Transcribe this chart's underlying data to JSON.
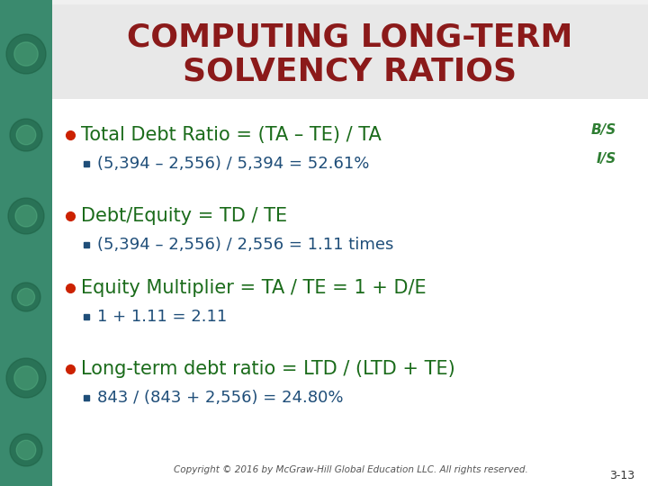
{
  "title_line1": "COMPUTING LONG-TERM",
  "title_line2": "SOLVENCY RATIOS",
  "title_color": "#8B1A1A",
  "title_bg_color": "#E8E8E8",
  "bullet_color": "#CC2200",
  "sub_bullet_color": "#1F4E79",
  "text_color": "#1A6B1A",
  "bg_color": "#FFFFFF",
  "left_panel_color": "#2E8B57",
  "bs_is_color": "#2E7D32",
  "bullets": [
    {
      "main": "Total Debt Ratio = (TA – TE) / TA",
      "sub": "(5,394 – 2,556) / 5,394 = 52.61%",
      "show_bs_is": true
    },
    {
      "main": "Debt/Equity = TD / TE",
      "sub": "(5,394 – 2,556) / 2,556 = 1.11 times",
      "show_bs_is": false
    },
    {
      "main": "Equity Multiplier = TA / TE = 1 + D/E",
      "sub": "1 + 1.11 = 2.11",
      "show_bs_is": false
    },
    {
      "main": "Long-term debt ratio = LTD / (LTD + TE)",
      "sub": "843 / (843 + 2,556) = 24.80%",
      "show_bs_is": false
    }
  ],
  "copyright": "Copyright © 2016 by McGraw-Hill Global Education LLC. All rights reserved.",
  "page_num": "3-13",
  "slide_bg": "#F0F0F0"
}
